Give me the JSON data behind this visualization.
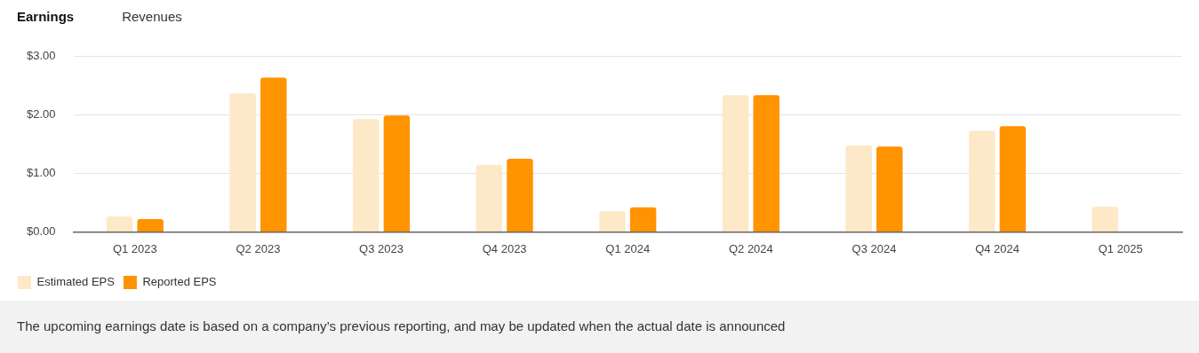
{
  "chart_data": {
    "type": "bar",
    "categories": [
      "Q1 2023",
      "Q2 2023",
      "Q3 2023",
      "Q4 2023",
      "Q1 2024",
      "Q2 2024",
      "Q3 2024",
      "Q4 2024",
      "Q1 2025"
    ],
    "series": [
      {
        "name": "Estimated EPS",
        "color": "#fde8c8",
        "values": [
          0.26,
          2.37,
          1.93,
          1.15,
          0.35,
          2.34,
          1.48,
          1.73,
          0.43
        ]
      },
      {
        "name": "Reported EPS",
        "color": "#ff9300",
        "values": [
          0.22,
          2.64,
          1.99,
          1.25,
          0.42,
          2.34,
          1.46,
          1.81,
          null
        ]
      }
    ],
    "ylim": [
      0,
      3
    ],
    "yticks": [
      {
        "value": 0,
        "label": "$0.00"
      },
      {
        "value": 1,
        "label": "$1.00"
      },
      {
        "value": 2,
        "label": "$2.00"
      },
      {
        "value": 3,
        "label": "$3.00"
      }
    ],
    "grid": "y",
    "legend": "bottom left",
    "annotations": [
      "Earnings",
      "Revenues",
      "The upcoming earnings date is based on a company’s previous reporting, and may be updated when the actual date is announced"
    ]
  }
}
